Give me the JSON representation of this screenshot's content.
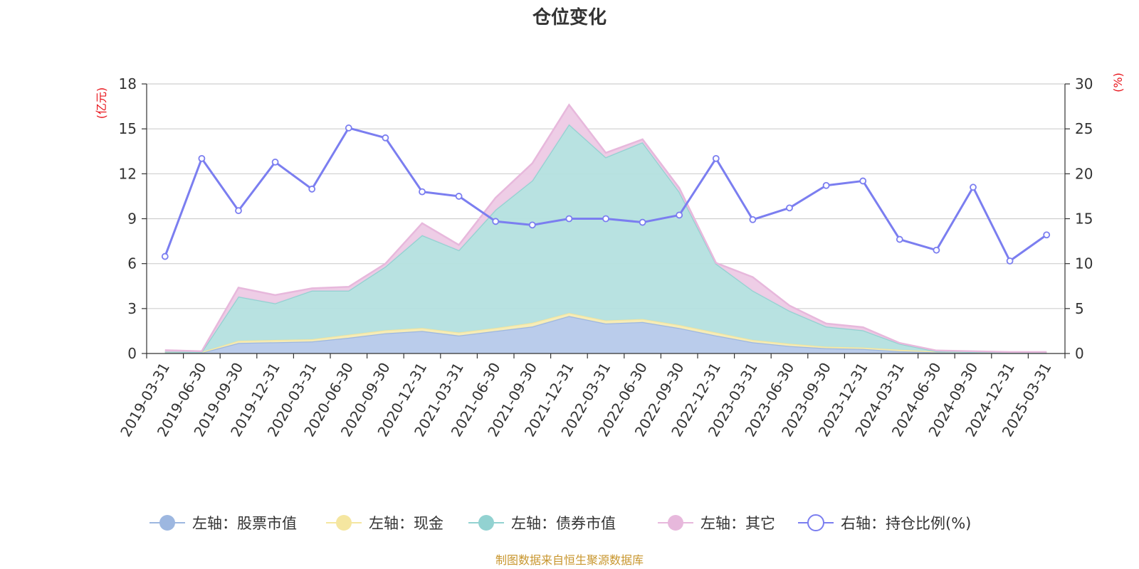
{
  "chart_data": {
    "type": "area",
    "title": "仓位变化",
    "left_axis_unit": "(亿元)",
    "right_axis_unit": "(%)",
    "source": "制图数据来自恒生聚源数据库",
    "left_axis": {
      "min": 0,
      "max": 18,
      "ticks": [
        "0",
        "3",
        "6",
        "9",
        "12",
        "15",
        "18"
      ]
    },
    "right_axis": {
      "min": 0,
      "max": 30,
      "ticks": [
        "0",
        "5",
        "10",
        "15",
        "20",
        "25",
        "30"
      ]
    },
    "grid": true,
    "legend_position": "bottom",
    "categories": [
      "2019-03-31",
      "2019-06-30",
      "2019-09-30",
      "2019-12-31",
      "2020-03-31",
      "2020-06-30",
      "2020-09-30",
      "2020-12-31",
      "2021-03-31",
      "2021-06-30",
      "2021-09-30",
      "2021-12-31",
      "2022-03-31",
      "2022-06-30",
      "2022-09-30",
      "2022-12-31",
      "2023-03-31",
      "2023-06-30",
      "2023-09-30",
      "2023-12-31",
      "2024-03-31",
      "2024-06-30",
      "2024-09-30",
      "2024-12-31",
      "2025-03-31"
    ],
    "series": [
      {
        "name": "左轴：股票市值",
        "axis": "left",
        "stack": true,
        "color": "#9db7e0",
        "fill": "#b6c9ea",
        "values": [
          0.05,
          0.05,
          0.7,
          0.75,
          0.8,
          1.05,
          1.35,
          1.5,
          1.2,
          1.5,
          1.8,
          2.5,
          2.0,
          2.1,
          1.7,
          1.2,
          0.75,
          0.5,
          0.35,
          0.3,
          0.15,
          0.08,
          0.05,
          0.04,
          0.04
        ]
      },
      {
        "name": "左轴：现金",
        "axis": "left",
        "stack": true,
        "color": "#f5e6a0",
        "fill": "#f7ecb5",
        "values": [
          0.05,
          0.05,
          0.15,
          0.15,
          0.15,
          0.2,
          0.2,
          0.2,
          0.2,
          0.2,
          0.25,
          0.2,
          0.2,
          0.2,
          0.2,
          0.2,
          0.15,
          0.15,
          0.1,
          0.1,
          0.1,
          0.05,
          0.05,
          0.03,
          0.03
        ]
      },
      {
        "name": "左轴：债券市值",
        "axis": "left",
        "stack": true,
        "color": "#92d2d1",
        "fill": "#b4e0df",
        "values": [
          0.02,
          0.0,
          2.95,
          2.45,
          3.25,
          2.95,
          4.25,
          6.2,
          5.5,
          7.9,
          9.5,
          12.6,
          10.9,
          11.8,
          8.9,
          4.6,
          3.3,
          2.2,
          1.35,
          1.15,
          0.4,
          0.02,
          0.0,
          0.0,
          0.0
        ]
      },
      {
        "name": "左轴：其它",
        "axis": "left",
        "stack": true,
        "color": "#e7b8dc",
        "fill": "#edcae5",
        "values": [
          0.1,
          0.05,
          0.6,
          0.55,
          0.15,
          0.25,
          0.2,
          0.8,
          0.35,
          0.8,
          1.15,
          1.3,
          0.3,
          0.2,
          0.25,
          0.05,
          0.9,
          0.35,
          0.2,
          0.2,
          0.05,
          0.05,
          0.05,
          0.03,
          0.03
        ]
      },
      {
        "name": "右轴：持仓比例(%)",
        "axis": "right",
        "type": "line",
        "color": "#7b7ef0",
        "values": [
          10.8,
          21.7,
          15.9,
          21.3,
          18.3,
          25.1,
          24.0,
          18.0,
          17.5,
          14.7,
          14.3,
          15.0,
          15.0,
          14.6,
          15.4,
          21.7,
          14.9,
          16.2,
          18.7,
          19.2,
          12.7,
          11.5,
          18.5,
          10.3,
          13.2
        ]
      }
    ]
  }
}
